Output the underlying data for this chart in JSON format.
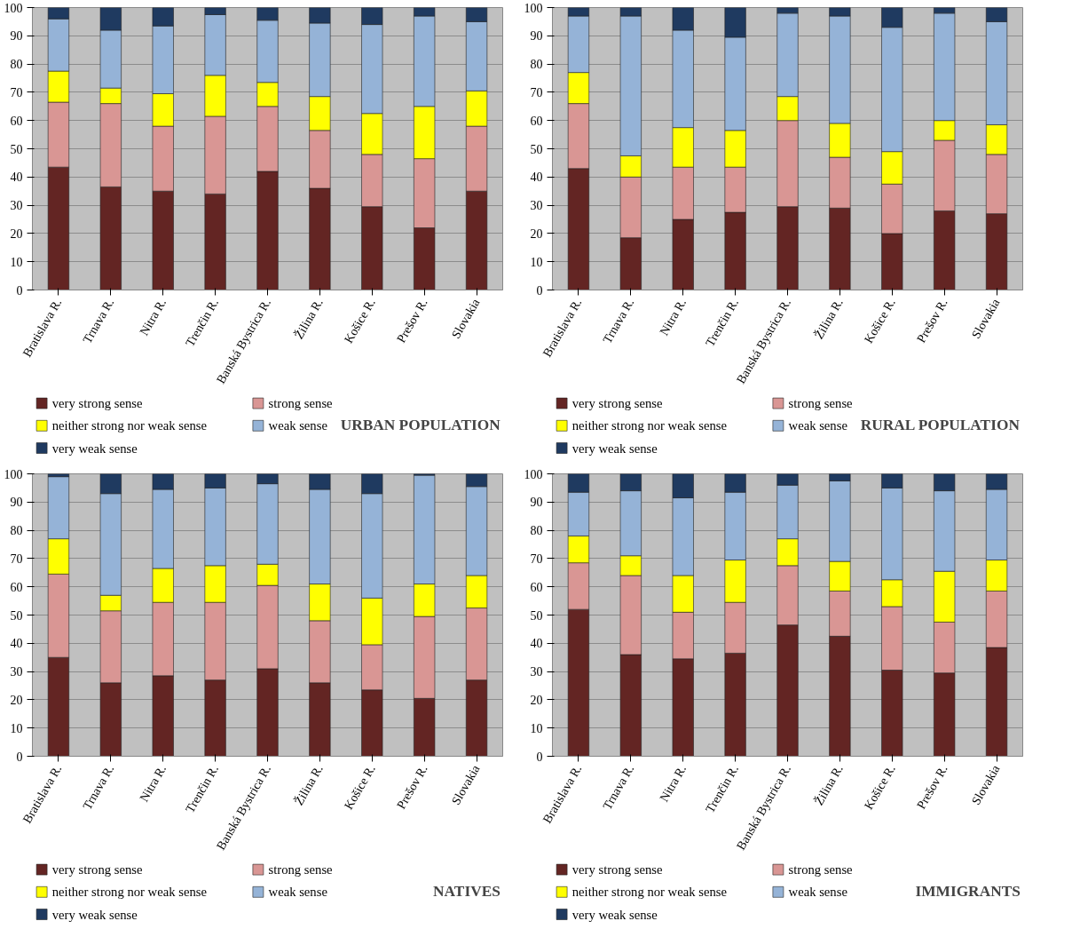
{
  "chart_data": [
    {
      "type": "bar",
      "stacked": true,
      "title": "URBAN POPULATION",
      "categories": [
        "Bratislava R.",
        "Trnava R.",
        "Nitra R.",
        "Trenčin R.",
        "Banská Bystrica R.",
        "Žilina R.",
        "Košice R.",
        "Prešov R.",
        "Slovakia"
      ],
      "ylim": [
        0,
        100
      ],
      "yticks": [
        0,
        10,
        20,
        30,
        40,
        50,
        60,
        70,
        80,
        90,
        100
      ],
      "grid": "y",
      "legend": "bottom",
      "series": [
        {
          "name": "very strong sense",
          "color": "#632523",
          "values": [
            43.5,
            36.5,
            35,
            34,
            42,
            36,
            29.5,
            22,
            35
          ]
        },
        {
          "name": "strong sense",
          "color": "#d99694",
          "values": [
            23,
            29.5,
            23,
            27.5,
            23,
            20.5,
            18.5,
            24.5,
            23
          ]
        },
        {
          "name": "neither strong nor weak sense",
          "color": "#ffff00",
          "values": [
            11,
            5.5,
            11.5,
            14.5,
            8.5,
            12,
            14.5,
            18.5,
            12.5
          ]
        },
        {
          "name": "weak sense",
          "color": "#95b3d7",
          "values": [
            18.5,
            20.5,
            24,
            21.5,
            22,
            26,
            31.5,
            32,
            24.5
          ]
        },
        {
          "name": "very weak sense",
          "color": "#1f3a60",
          "values": [
            4,
            8,
            6.5,
            2.5,
            4.5,
            5.5,
            6,
            3,
            5
          ]
        }
      ]
    },
    {
      "type": "bar",
      "stacked": true,
      "title": "RURAL POPULATION",
      "categories": [
        "Bratislava R.",
        "Trnava R.",
        "Nitra R.",
        "Trenčin R.",
        "Banská Bystrica R.",
        "Žilina R.",
        "Košice R.",
        "Prešov R.",
        "Slovakia"
      ],
      "ylim": [
        0,
        100
      ],
      "yticks": [
        0,
        10,
        20,
        30,
        40,
        50,
        60,
        70,
        80,
        90,
        100
      ],
      "grid": "y",
      "legend": "bottom",
      "series": [
        {
          "name": "very strong sense",
          "color": "#632523",
          "values": [
            43,
            18.5,
            25,
            27.5,
            29.5,
            29,
            20,
            28,
            27
          ]
        },
        {
          "name": "strong sense",
          "color": "#d99694",
          "values": [
            23,
            21.5,
            18.5,
            16,
            30.5,
            18,
            17.5,
            25,
            21
          ]
        },
        {
          "name": "neither strong nor weak sense",
          "color": "#ffff00",
          "values": [
            11,
            7.5,
            14,
            13,
            8.5,
            12,
            11.5,
            7,
            10.5
          ]
        },
        {
          "name": "weak sense",
          "color": "#95b3d7",
          "values": [
            20,
            49.5,
            34.5,
            33,
            29.5,
            38,
            44,
            38,
            36.5
          ]
        },
        {
          "name": "very weak sense",
          "color": "#1f3a60",
          "values": [
            3,
            3,
            8,
            10.5,
            2,
            3,
            7,
            2,
            5
          ]
        }
      ]
    },
    {
      "type": "bar",
      "stacked": true,
      "title": "NATIVES",
      "categories": [
        "Bratislava R.",
        "Trnava R.",
        "Nitra R.",
        "Trenčin R.",
        "Banská Bystrica R.",
        "Žilina R.",
        "Košice R.",
        "Prešov R.",
        "Slovakia"
      ],
      "ylim": [
        0,
        100
      ],
      "yticks": [
        0,
        10,
        20,
        30,
        40,
        50,
        60,
        70,
        80,
        90,
        100
      ],
      "grid": "y",
      "legend": "bottom",
      "series": [
        {
          "name": "very strong sense",
          "color": "#632523",
          "values": [
            35,
            26,
            28.5,
            27,
            31,
            26,
            23.5,
            20.5,
            27
          ]
        },
        {
          "name": "strong sense",
          "color": "#d99694",
          "values": [
            29.5,
            25.5,
            26,
            27.5,
            29.5,
            22,
            16,
            29,
            25.5
          ]
        },
        {
          "name": "neither strong nor weak sense",
          "color": "#ffff00",
          "values": [
            12.5,
            5.5,
            12,
            13,
            7.5,
            13,
            16.5,
            11.5,
            11.5
          ]
        },
        {
          "name": "weak sense",
          "color": "#95b3d7",
          "values": [
            22,
            36,
            28,
            27.5,
            28.5,
            33.5,
            37,
            38.5,
            31.5
          ]
        },
        {
          "name": "very weak sense",
          "color": "#1f3a60",
          "values": [
            1,
            7,
            5.5,
            5,
            3.5,
            5.5,
            7,
            0.5,
            4.5
          ]
        }
      ]
    },
    {
      "type": "bar",
      "stacked": true,
      "title": "IMMIGRANTS",
      "categories": [
        "Bratislava R.",
        "Trnava R.",
        "Nitra R.",
        "Trenčin R.",
        "Banská Bystrica R.",
        "Žilina R.",
        "Košice R.",
        "Prešov R.",
        "Slovakia"
      ],
      "ylim": [
        0,
        100
      ],
      "yticks": [
        0,
        10,
        20,
        30,
        40,
        50,
        60,
        70,
        80,
        90,
        100
      ],
      "grid": "y",
      "legend": "bottom",
      "series": [
        {
          "name": "very strong sense",
          "color": "#632523",
          "values": [
            52,
            36,
            34.5,
            36.5,
            46.5,
            42.5,
            30.5,
            29.5,
            38.5
          ]
        },
        {
          "name": "strong sense",
          "color": "#d99694",
          "values": [
            16.5,
            28,
            16.5,
            18,
            21,
            16,
            22.5,
            18,
            20
          ]
        },
        {
          "name": "neither strong nor weak sense",
          "color": "#ffff00",
          "values": [
            9.5,
            7,
            13,
            15,
            9.5,
            10.5,
            9.5,
            18,
            11
          ]
        },
        {
          "name": "weak sense",
          "color": "#95b3d7",
          "values": [
            15.5,
            23,
            27.5,
            24,
            19,
            28.5,
            32.5,
            28.5,
            25
          ]
        },
        {
          "name": "very weak sense",
          "color": "#1f3a60",
          "values": [
            6.5,
            6,
            8.5,
            6.5,
            4,
            2.5,
            5,
            6,
            5.5
          ]
        }
      ]
    }
  ]
}
